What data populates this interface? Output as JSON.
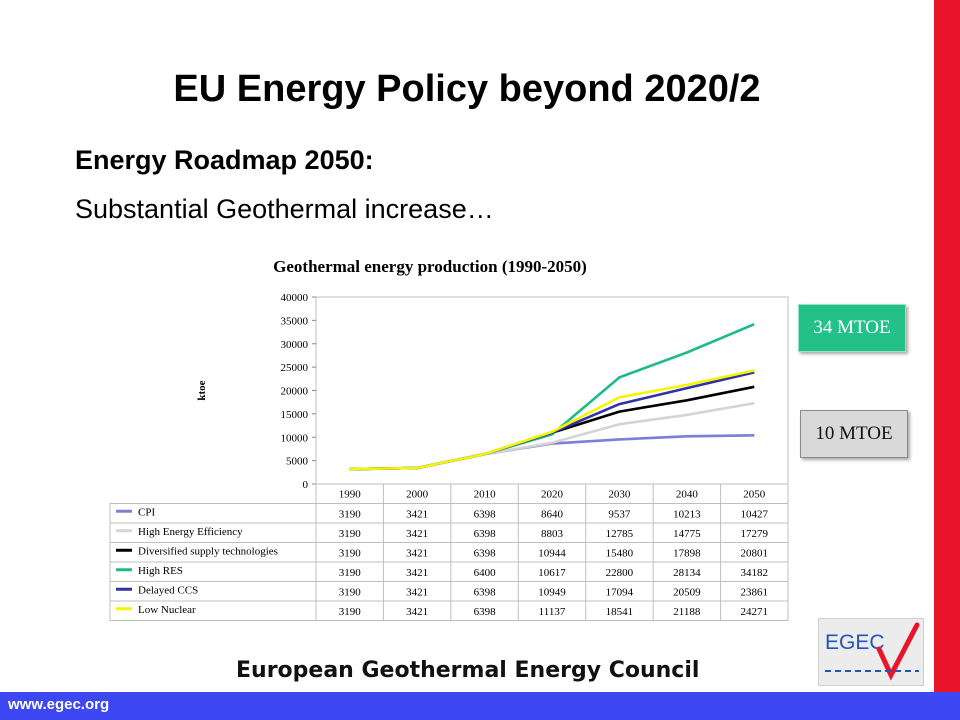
{
  "slide": {
    "title": "EU Energy Policy beyond 2020/2",
    "subtitle": "Energy Roadmap 2050:",
    "subtitle2": "Substantial Geothermal increase…",
    "footer_org": "European Geothermal Energy Council",
    "website": "www.egec.org",
    "logo_text": "EGEC",
    "badge_high": "34 MTOE",
    "badge_low": "10 MTOE"
  },
  "colors": {
    "red_bar": "#e8142a",
    "blue_bar": "#3d47f2",
    "badge_high": "#23c08a",
    "badge_low": "#d9d9d9",
    "logo_blue": "#1f58b8",
    "logo_check": "#e8142a"
  },
  "chart_data": {
    "type": "line",
    "title": "Geothermal energy production (1990-2050)",
    "ylabel": "ktoe",
    "xlabel": "",
    "categories": [
      "1990",
      "2000",
      "2010",
      "2020",
      "2030",
      "2040",
      "2050"
    ],
    "ylim": [
      0,
      40000
    ],
    "yticks": [
      0,
      5000,
      10000,
      15000,
      20000,
      25000,
      30000,
      35000,
      40000
    ],
    "grid": false,
    "data_table": true,
    "series": [
      {
        "name": "CPI",
        "color": "#7b7fd6",
        "values": [
          3190,
          3421,
          6398,
          8640,
          9537,
          10213,
          10427
        ]
      },
      {
        "name": "High Energy Efficiency",
        "color": "#d4d4d4",
        "values": [
          3190,
          3421,
          6398,
          8803,
          12785,
          14775,
          17279
        ]
      },
      {
        "name": "Diversified supply technologies",
        "color": "#000000",
        "values": [
          3190,
          3421,
          6398,
          10944,
          15480,
          17898,
          20801
        ]
      },
      {
        "name": "High RES",
        "color": "#1fba8c",
        "values": [
          3190,
          3421,
          6400,
          10617,
          22800,
          28134,
          34182
        ]
      },
      {
        "name": "Delayed CCS",
        "color": "#2e34a8",
        "values": [
          3190,
          3421,
          6398,
          10949,
          17094,
          20509,
          23861
        ]
      },
      {
        "name": "Low Nuclear",
        "color": "#f5f500",
        "values": [
          3190,
          3421,
          6398,
          11137,
          18541,
          21188,
          24271
        ]
      }
    ]
  }
}
